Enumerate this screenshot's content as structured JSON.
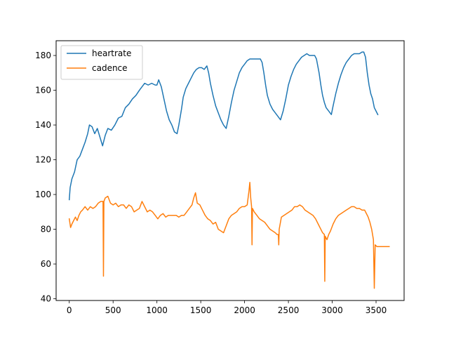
{
  "chart_data": {
    "type": "line",
    "title": "",
    "xlabel": "",
    "ylabel": "",
    "xlim": [
      -150,
      3820
    ],
    "ylim": [
      39,
      188.5
    ],
    "grid": false,
    "legend_position": "top-left",
    "x_ticks": [
      0,
      500,
      1000,
      1500,
      2000,
      2500,
      3000,
      3500
    ],
    "y_ticks": [
      40,
      60,
      80,
      100,
      120,
      140,
      160,
      180
    ],
    "x_tick_labels": [
      "0",
      "500",
      "1000",
      "1500",
      "2000",
      "2500",
      "3000",
      "3500"
    ],
    "y_tick_labels": [
      "40",
      "60",
      "80",
      "100",
      "120",
      "140",
      "160",
      "180"
    ],
    "series": [
      {
        "name": "heartrate",
        "color": "#1f77b4",
        "points": [
          [
            0,
            97
          ],
          [
            10,
            104
          ],
          [
            30,
            109
          ],
          [
            60,
            113
          ],
          [
            90,
            120
          ],
          [
            120,
            122
          ],
          [
            150,
            126
          ],
          [
            180,
            130
          ],
          [
            210,
            135
          ],
          [
            230,
            140
          ],
          [
            260,
            139
          ],
          [
            290,
            135
          ],
          [
            320,
            138
          ],
          [
            350,
            133
          ],
          [
            380,
            128
          ],
          [
            410,
            134
          ],
          [
            440,
            138
          ],
          [
            480,
            137
          ],
          [
            520,
            140
          ],
          [
            560,
            144
          ],
          [
            600,
            145
          ],
          [
            640,
            150
          ],
          [
            680,
            152
          ],
          [
            720,
            155
          ],
          [
            760,
            157
          ],
          [
            800,
            160
          ],
          [
            830,
            162
          ],
          [
            860,
            164
          ],
          [
            900,
            163
          ],
          [
            940,
            164
          ],
          [
            980,
            163
          ],
          [
            1000,
            163
          ],
          [
            1020,
            166
          ],
          [
            1050,
            162
          ],
          [
            1080,
            155
          ],
          [
            1110,
            148
          ],
          [
            1140,
            143
          ],
          [
            1170,
            140
          ],
          [
            1200,
            136
          ],
          [
            1230,
            135
          ],
          [
            1250,
            140
          ],
          [
            1280,
            149
          ],
          [
            1300,
            156
          ],
          [
            1330,
            161
          ],
          [
            1360,
            164
          ],
          [
            1390,
            167
          ],
          [
            1420,
            170
          ],
          [
            1450,
            172
          ],
          [
            1480,
            173
          ],
          [
            1510,
            173
          ],
          [
            1540,
            172
          ],
          [
            1570,
            174
          ],
          [
            1590,
            170
          ],
          [
            1610,
            164
          ],
          [
            1640,
            157
          ],
          [
            1670,
            151
          ],
          [
            1700,
            147
          ],
          [
            1730,
            143
          ],
          [
            1760,
            140
          ],
          [
            1790,
            138
          ],
          [
            1820,
            145
          ],
          [
            1850,
            153
          ],
          [
            1880,
            160
          ],
          [
            1910,
            165
          ],
          [
            1940,
            170
          ],
          [
            1970,
            173
          ],
          [
            2000,
            175
          ],
          [
            2030,
            177
          ],
          [
            2060,
            178
          ],
          [
            2090,
            178
          ],
          [
            2120,
            178
          ],
          [
            2150,
            178
          ],
          [
            2180,
            178
          ],
          [
            2200,
            176
          ],
          [
            2220,
            170
          ],
          [
            2240,
            163
          ],
          [
            2260,
            157
          ],
          [
            2290,
            152
          ],
          [
            2320,
            149
          ],
          [
            2350,
            147
          ],
          [
            2380,
            145
          ],
          [
            2410,
            143
          ],
          [
            2440,
            148
          ],
          [
            2470,
            155
          ],
          [
            2500,
            163
          ],
          [
            2530,
            168
          ],
          [
            2560,
            172
          ],
          [
            2590,
            175
          ],
          [
            2620,
            177
          ],
          [
            2650,
            179
          ],
          [
            2680,
            180
          ],
          [
            2710,
            181
          ],
          [
            2740,
            180
          ],
          [
            2770,
            180
          ],
          [
            2800,
            180
          ],
          [
            2820,
            178
          ],
          [
            2850,
            170
          ],
          [
            2870,
            163
          ],
          [
            2890,
            157
          ],
          [
            2910,
            153
          ],
          [
            2930,
            150
          ],
          [
            2960,
            148
          ],
          [
            2990,
            146
          ],
          [
            3010,
            151
          ],
          [
            3040,
            158
          ],
          [
            3070,
            164
          ],
          [
            3100,
            169
          ],
          [
            3130,
            173
          ],
          [
            3160,
            176
          ],
          [
            3190,
            178
          ],
          [
            3220,
            180
          ],
          [
            3250,
            181
          ],
          [
            3280,
            181
          ],
          [
            3310,
            181
          ],
          [
            3340,
            182
          ],
          [
            3360,
            182
          ],
          [
            3380,
            179
          ],
          [
            3400,
            170
          ],
          [
            3420,
            163
          ],
          [
            3440,
            158
          ],
          [
            3460,
            155
          ],
          [
            3480,
            150
          ],
          [
            3500,
            148
          ],
          [
            3520,
            146
          ]
        ]
      },
      {
        "name": "cadence",
        "color": "#ff7f0e",
        "points": [
          [
            0,
            86
          ],
          [
            15,
            81
          ],
          [
            30,
            83
          ],
          [
            50,
            85
          ],
          [
            70,
            87
          ],
          [
            90,
            85
          ],
          [
            110,
            88
          ],
          [
            130,
            90
          ],
          [
            150,
            91
          ],
          [
            180,
            93
          ],
          [
            210,
            91
          ],
          [
            240,
            93
          ],
          [
            270,
            92
          ],
          [
            300,
            93
          ],
          [
            330,
            95
          ],
          [
            360,
            96
          ],
          [
            385,
            96
          ],
          [
            390,
            53
          ],
          [
            395,
            96
          ],
          [
            410,
            98
          ],
          [
            440,
            99
          ],
          [
            470,
            95
          ],
          [
            500,
            94
          ],
          [
            530,
            95
          ],
          [
            560,
            93
          ],
          [
            590,
            94
          ],
          [
            620,
            94
          ],
          [
            650,
            92
          ],
          [
            680,
            94
          ],
          [
            710,
            93
          ],
          [
            740,
            90
          ],
          [
            770,
            91
          ],
          [
            800,
            92
          ],
          [
            830,
            96
          ],
          [
            860,
            93
          ],
          [
            890,
            90
          ],
          [
            920,
            91
          ],
          [
            950,
            90
          ],
          [
            980,
            88
          ],
          [
            1010,
            86
          ],
          [
            1040,
            88
          ],
          [
            1070,
            89
          ],
          [
            1100,
            87
          ],
          [
            1130,
            88
          ],
          [
            1160,
            88
          ],
          [
            1190,
            88
          ],
          [
            1220,
            88
          ],
          [
            1250,
            87
          ],
          [
            1280,
            88
          ],
          [
            1310,
            88
          ],
          [
            1340,
            90
          ],
          [
            1370,
            92
          ],
          [
            1400,
            94
          ],
          [
            1420,
            98
          ],
          [
            1440,
            101
          ],
          [
            1460,
            95
          ],
          [
            1490,
            94
          ],
          [
            1520,
            91
          ],
          [
            1550,
            88
          ],
          [
            1580,
            86
          ],
          [
            1610,
            85
          ],
          [
            1640,
            83
          ],
          [
            1670,
            84
          ],
          [
            1700,
            80
          ],
          [
            1730,
            79
          ],
          [
            1760,
            78
          ],
          [
            1790,
            82
          ],
          [
            1820,
            86
          ],
          [
            1850,
            88
          ],
          [
            1880,
            89
          ],
          [
            1910,
            90
          ],
          [
            1940,
            92
          ],
          [
            1970,
            93
          ],
          [
            2000,
            93
          ],
          [
            2030,
            94
          ],
          [
            2050,
            102
          ],
          [
            2060,
            107
          ],
          [
            2070,
            98
          ],
          [
            2080,
            93
          ],
          [
            2085,
            71
          ],
          [
            2090,
            92
          ],
          [
            2110,
            90
          ],
          [
            2140,
            88
          ],
          [
            2170,
            86
          ],
          [
            2200,
            85
          ],
          [
            2230,
            84
          ],
          [
            2260,
            82
          ],
          [
            2290,
            80
          ],
          [
            2320,
            79
          ],
          [
            2350,
            78
          ],
          [
            2370,
            77
          ],
          [
            2385,
            77
          ],
          [
            2390,
            71
          ],
          [
            2395,
            80
          ],
          [
            2420,
            87
          ],
          [
            2450,
            88
          ],
          [
            2480,
            89
          ],
          [
            2510,
            90
          ],
          [
            2540,
            91
          ],
          [
            2570,
            93
          ],
          [
            2600,
            93
          ],
          [
            2630,
            94
          ],
          [
            2660,
            93
          ],
          [
            2690,
            91
          ],
          [
            2720,
            90
          ],
          [
            2750,
            89
          ],
          [
            2780,
            88
          ],
          [
            2810,
            86
          ],
          [
            2840,
            83
          ],
          [
            2870,
            80
          ],
          [
            2890,
            78
          ],
          [
            2910,
            77
          ],
          [
            2915,
            50
          ],
          [
            2920,
            76
          ],
          [
            2940,
            74
          ],
          [
            2960,
            77
          ],
          [
            2980,
            79
          ],
          [
            3010,
            83
          ],
          [
            3040,
            86
          ],
          [
            3070,
            88
          ],
          [
            3100,
            89
          ],
          [
            3130,
            90
          ],
          [
            3160,
            91
          ],
          [
            3190,
            92
          ],
          [
            3220,
            93
          ],
          [
            3250,
            93
          ],
          [
            3280,
            92
          ],
          [
            3310,
            92
          ],
          [
            3340,
            91
          ],
          [
            3370,
            91
          ],
          [
            3390,
            89
          ],
          [
            3410,
            87
          ],
          [
            3430,
            84
          ],
          [
            3450,
            80
          ],
          [
            3470,
            74
          ],
          [
            3480,
            46
          ],
          [
            3490,
            71
          ],
          [
            3510,
            70
          ],
          [
            3540,
            70
          ],
          [
            3570,
            70
          ],
          [
            3600,
            70
          ],
          [
            3630,
            70
          ],
          [
            3650,
            70
          ]
        ]
      }
    ]
  }
}
